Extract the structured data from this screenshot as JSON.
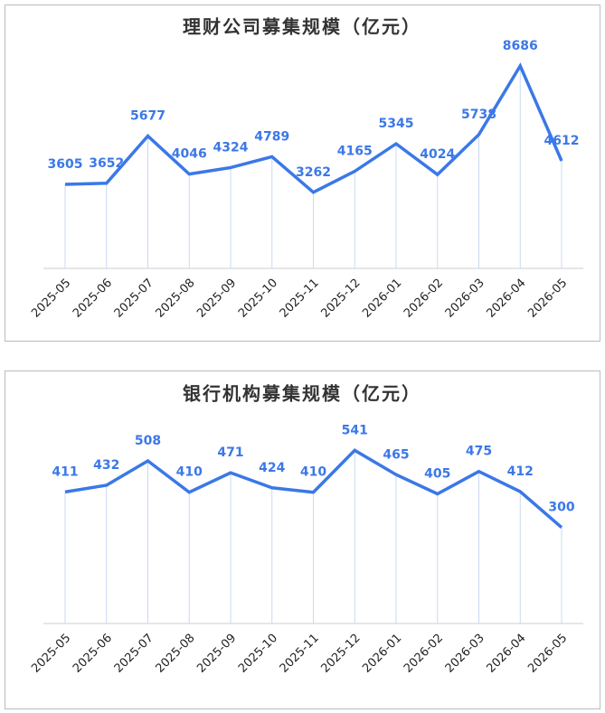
{
  "chart_data": [
    {
      "type": "line",
      "title": "理财公司募集规模（亿元）",
      "categories": [
        "2025-05",
        "2025-06",
        "2025-07",
        "2025-08",
        "2025-09",
        "2025-10",
        "2025-11",
        "2025-12",
        "2026-01",
        "2026-02",
        "2026-03",
        "2026-04",
        "2026-05"
      ],
      "values": [
        3605,
        3652,
        5677,
        4046,
        4324,
        4789,
        3262,
        4165,
        5345,
        4024,
        5738,
        8686,
        4612
      ],
      "color": "#3b78e7",
      "ylim": [
        0,
        10000
      ]
    },
    {
      "type": "line",
      "title": "银行机构募集规模（亿元）",
      "categories": [
        "2025-05",
        "2025-06",
        "2025-07",
        "2025-08",
        "2025-09",
        "2025-10",
        "2025-11",
        "2025-12",
        "2026-01",
        "2026-02",
        "2026-03",
        "2026-04",
        "2026-05"
      ],
      "values": [
        411,
        432,
        508,
        410,
        471,
        424,
        410,
        541,
        465,
        405,
        475,
        412,
        300
      ],
      "color": "#3b78e7",
      "ylim": [
        0,
        700
      ]
    }
  ]
}
